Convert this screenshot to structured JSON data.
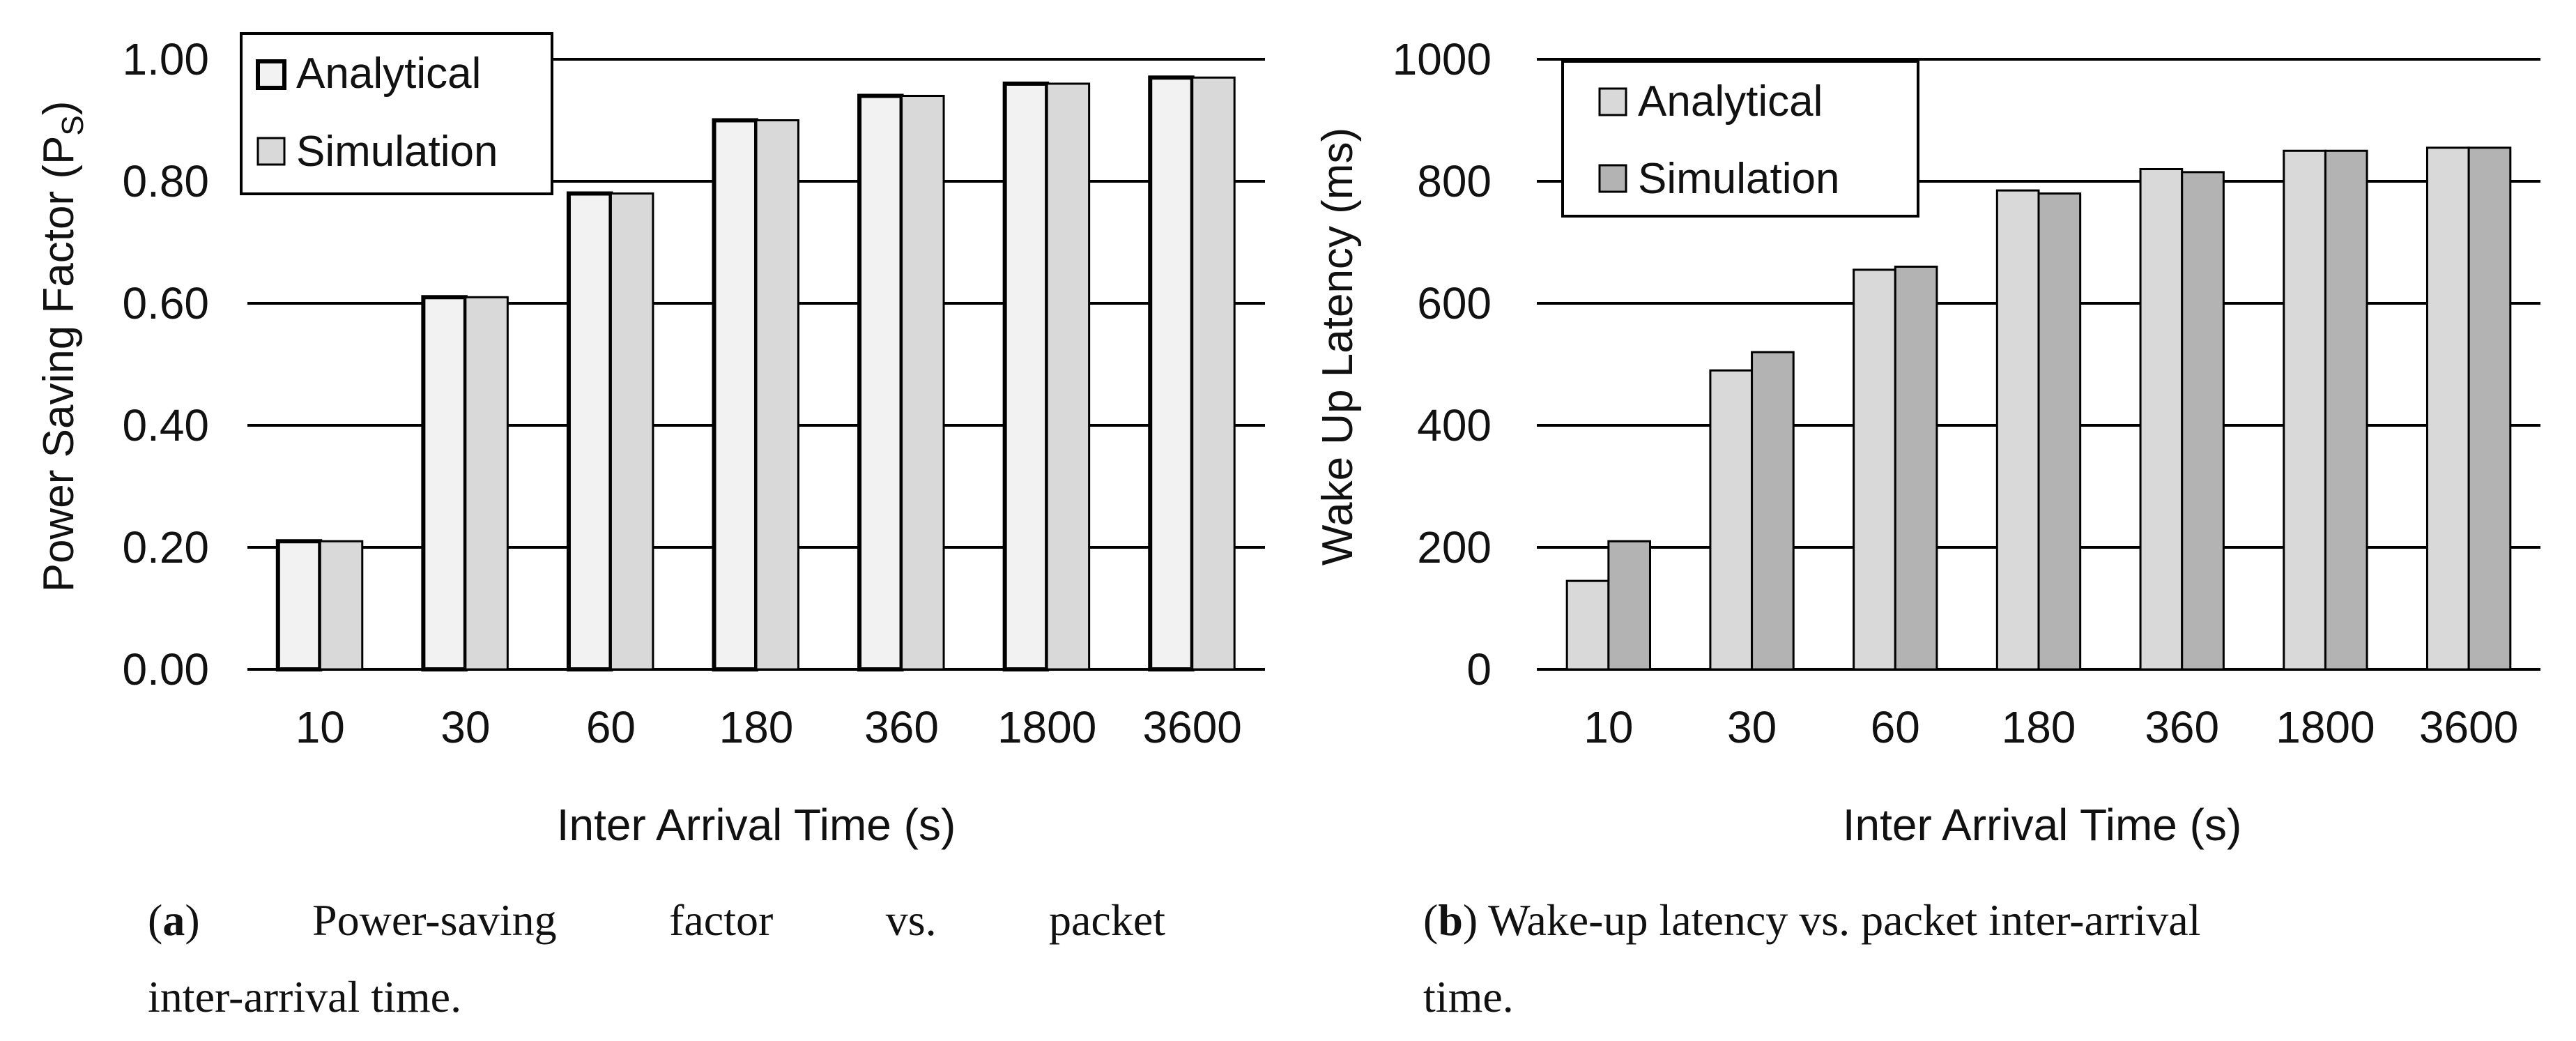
{
  "colors": {
    "analytical_a": "#f2f2f2",
    "simulation_a": "#d9d9d9",
    "analytical_b": "#d9d9d9",
    "simulation_b": "#b3b3b3",
    "stroke": "#000000"
  },
  "chart_data": [
    {
      "type": "bar",
      "panel": "a",
      "title": "",
      "xlabel": "Inter Arrival Time (s)",
      "ylabel_main": "Power Saving Factor (P",
      "ylabel_sub": "S",
      "ylabel_close": ")",
      "categories": [
        "10",
        "30",
        "60",
        "180",
        "360",
        "1800",
        "3600"
      ],
      "series": [
        {
          "name": "Analytical",
          "values": [
            0.21,
            0.61,
            0.78,
            0.9,
            0.94,
            0.96,
            0.97
          ]
        },
        {
          "name": "Simulation",
          "values": [
            0.21,
            0.61,
            0.78,
            0.9,
            0.94,
            0.96,
            0.97
          ]
        }
      ],
      "ylim": [
        0,
        1
      ],
      "yticks": [
        0,
        0.2,
        0.4,
        0.6,
        0.8,
        1.0
      ],
      "ytick_labels": [
        "0.00",
        "0.20",
        "0.40",
        "0.60",
        "0.80",
        "1.00"
      ],
      "grid": true,
      "legend": "top-left"
    },
    {
      "type": "bar",
      "panel": "b",
      "title": "",
      "xlabel": "Inter Arrival Time (s)",
      "ylabel": "Wake Up Latency (ms)",
      "categories": [
        "10",
        "30",
        "60",
        "180",
        "360",
        "1800",
        "3600"
      ],
      "series": [
        {
          "name": "Analytical",
          "values": [
            145,
            490,
            655,
            785,
            820,
            850,
            855
          ]
        },
        {
          "name": "Simulation",
          "values": [
            210,
            520,
            660,
            780,
            815,
            850,
            855
          ]
        }
      ],
      "ylim": [
        0,
        1000
      ],
      "yticks": [
        0,
        200,
        400,
        600,
        800,
        1000
      ],
      "ytick_labels": [
        "0",
        "200",
        "400",
        "600",
        "800",
        "1000"
      ],
      "grid": true,
      "legend": "top-left"
    }
  ],
  "captions": {
    "a": {
      "label": "a",
      "line1_rest": ") Power-saving factor vs. packet",
      "line2": "inter-arrival time."
    },
    "b": {
      "label": "b",
      "line1_rest": ") Wake-up latency vs. packet inter-arrival",
      "line2": "time."
    }
  }
}
